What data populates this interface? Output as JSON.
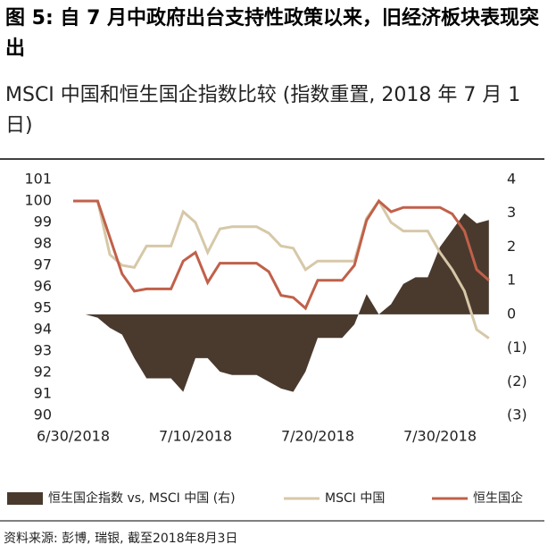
{
  "chart_data": {
    "type": "line",
    "title": "图 5: 自 7 月中政府出台支持性政策以来，旧经济板块表现突出",
    "subtitle": "MSCI 中国和恒生国企指数比较 (指数重置, 2018 年 7 月 1 日)",
    "source": "资料来源: 彭博, 瑞银, 截至2018年8月3日",
    "categories": [
      "6/30/2018",
      null,
      null,
      null,
      null,
      null,
      null,
      null,
      null,
      null,
      "7/10/2018",
      null,
      null,
      null,
      null,
      null,
      null,
      null,
      null,
      null,
      "7/20/2018",
      null,
      null,
      null,
      null,
      null,
      null,
      null,
      null,
      null,
      "7/30/2018",
      null,
      null,
      null,
      null
    ],
    "ylim": [
      90,
      101
    ],
    "yticks": [
      90,
      91,
      92,
      93,
      94,
      95,
      96,
      97,
      98,
      99,
      100,
      101
    ],
    "y2lim": [
      -3,
      4
    ],
    "y2ticks": [
      {
        "value": -3,
        "label": "(3)"
      },
      {
        "value": -2,
        "label": "(2)"
      },
      {
        "value": -1,
        "label": "(1)"
      },
      0,
      1,
      2,
      3,
      4
    ],
    "series": [
      {
        "name": "恒生国企指数 vs, MSCI 中国 (右)",
        "type": "area",
        "axis": "y2",
        "color": "#4a3a2e",
        "values": [
          0,
          0,
          -0.1,
          -0.4,
          -0.6,
          -1.3,
          -1.9,
          -1.9,
          -1.9,
          -2.3,
          -1.3,
          -1.3,
          -1.7,
          -1.8,
          -1.8,
          -1.8,
          -2.0,
          -2.2,
          -2.3,
          -1.7,
          -0.7,
          -0.7,
          -0.7,
          -0.3,
          0.6,
          0,
          0.3,
          0.9,
          1.1,
          1.1,
          2.0,
          2.5,
          3.0,
          2.7,
          2.8
        ]
      },
      {
        "name": "MSCI 中国",
        "type": "line",
        "color": "#d6c8a8",
        "values": [
          100,
          100,
          100,
          97.5,
          97.0,
          96.9,
          97.9,
          97.9,
          97.9,
          99.5,
          99.0,
          97.6,
          98.7,
          98.8,
          98.8,
          98.8,
          98.5,
          97.9,
          97.8,
          96.8,
          97.2,
          97.2,
          97.2,
          97.2,
          99.2,
          100.0,
          99.0,
          98.6,
          98.6,
          98.6,
          97.6,
          96.8,
          95.8,
          94.0,
          93.6
        ]
      },
      {
        "name": "恒生国企",
        "type": "line",
        "color": "#c1604a",
        "values": [
          100,
          100,
          100,
          98.3,
          96.6,
          95.8,
          95.9,
          95.9,
          95.9,
          97.2,
          97.6,
          96.2,
          97.1,
          97.1,
          97.1,
          97.1,
          96.7,
          95.6,
          95.5,
          95.0,
          96.3,
          96.3,
          96.3,
          97.0,
          99.1,
          100.0,
          99.5,
          99.7,
          99.7,
          99.7,
          99.7,
          99.4,
          98.6,
          96.8,
          96.3
        ]
      }
    ]
  }
}
